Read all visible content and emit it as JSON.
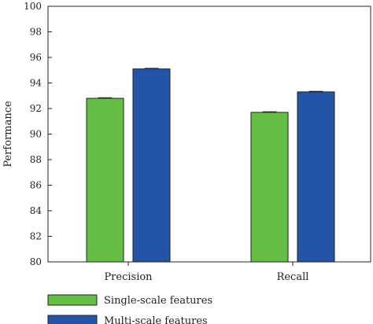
{
  "chart_data": {
    "type": "bar",
    "title": "",
    "xlabel": "",
    "ylabel": "Performance",
    "ylim": [
      80,
      100
    ],
    "yticks": [
      80,
      82,
      84,
      86,
      88,
      90,
      92,
      94,
      96,
      98,
      100
    ],
    "categories": [
      "Precision",
      "Recall"
    ],
    "series": [
      {
        "name": "Single-scale features",
        "color": "#66bf45",
        "values": [
          92.8,
          91.7
        ],
        "errors": [
          0.05,
          0.05
        ]
      },
      {
        "name": "Multi-scale features",
        "color": "#2254a8",
        "values": [
          95.1,
          93.3
        ],
        "errors": [
          0.05,
          0.05
        ]
      }
    ],
    "grid": false,
    "legend_position": "bottom-left"
  }
}
